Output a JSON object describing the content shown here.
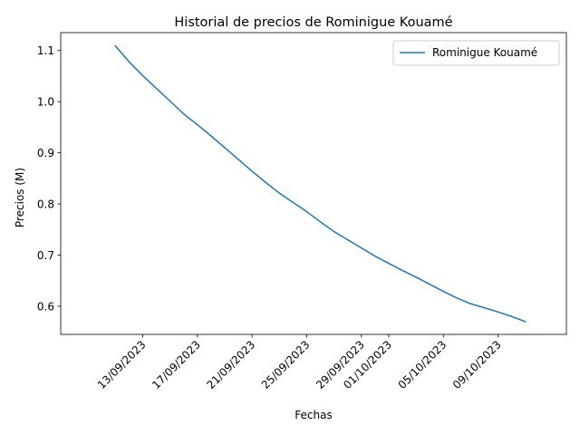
{
  "chart_data": {
    "type": "line",
    "title": "Historial de precios de Rominigue Kouamé",
    "xlabel": "Fechas",
    "ylabel": "Precios (M)",
    "ylim": [
      0.545,
      1.135
    ],
    "yticks": [
      0.6,
      0.7,
      0.8,
      0.9,
      1.0,
      1.1
    ],
    "ytick_labels": [
      "0.6",
      "0.7",
      "0.8",
      "0.9",
      "1.0",
      "1.1"
    ],
    "xlim": [
      "2023-09-07",
      "2023-10-14"
    ],
    "xticks": [
      "2023-09-13",
      "2023-09-17",
      "2023-09-21",
      "2023-09-25",
      "2023-09-29",
      "2023-10-01",
      "2023-10-05",
      "2023-10-09"
    ],
    "xtick_labels": [
      "13/09/2023",
      "17/09/2023",
      "21/09/2023",
      "25/09/2023",
      "29/09/2023",
      "01/10/2023",
      "05/10/2023",
      "09/10/2023"
    ],
    "legend_position": "top-right",
    "grid": false,
    "series": [
      {
        "name": "Rominigue Kouamé",
        "color": "#1f77b4",
        "x": [
          "2023-09-11",
          "2023-09-12",
          "2023-09-13",
          "2023-09-14",
          "2023-09-15",
          "2023-09-16",
          "2023-09-17",
          "2023-09-18",
          "2023-09-19",
          "2023-09-20",
          "2023-09-21",
          "2023-09-22",
          "2023-09-23",
          "2023-09-24",
          "2023-09-25",
          "2023-09-26",
          "2023-09-27",
          "2023-09-28",
          "2023-09-29",
          "2023-09-30",
          "2023-10-01",
          "2023-10-02",
          "2023-10-03",
          "2023-10-04",
          "2023-10-05",
          "2023-10-06",
          "2023-10-07",
          "2023-10-08",
          "2023-10-09",
          "2023-10-10",
          "2023-10-11"
        ],
        "values": [
          1.109,
          1.078,
          1.051,
          1.026,
          1.001,
          0.976,
          0.955,
          0.933,
          0.91,
          0.887,
          0.864,
          0.842,
          0.821,
          0.803,
          0.785,
          0.765,
          0.746,
          0.73,
          0.714,
          0.698,
          0.684,
          0.67,
          0.657,
          0.643,
          0.629,
          0.616,
          0.605,
          0.597,
          0.589,
          0.58,
          0.57
        ]
      }
    ]
  }
}
